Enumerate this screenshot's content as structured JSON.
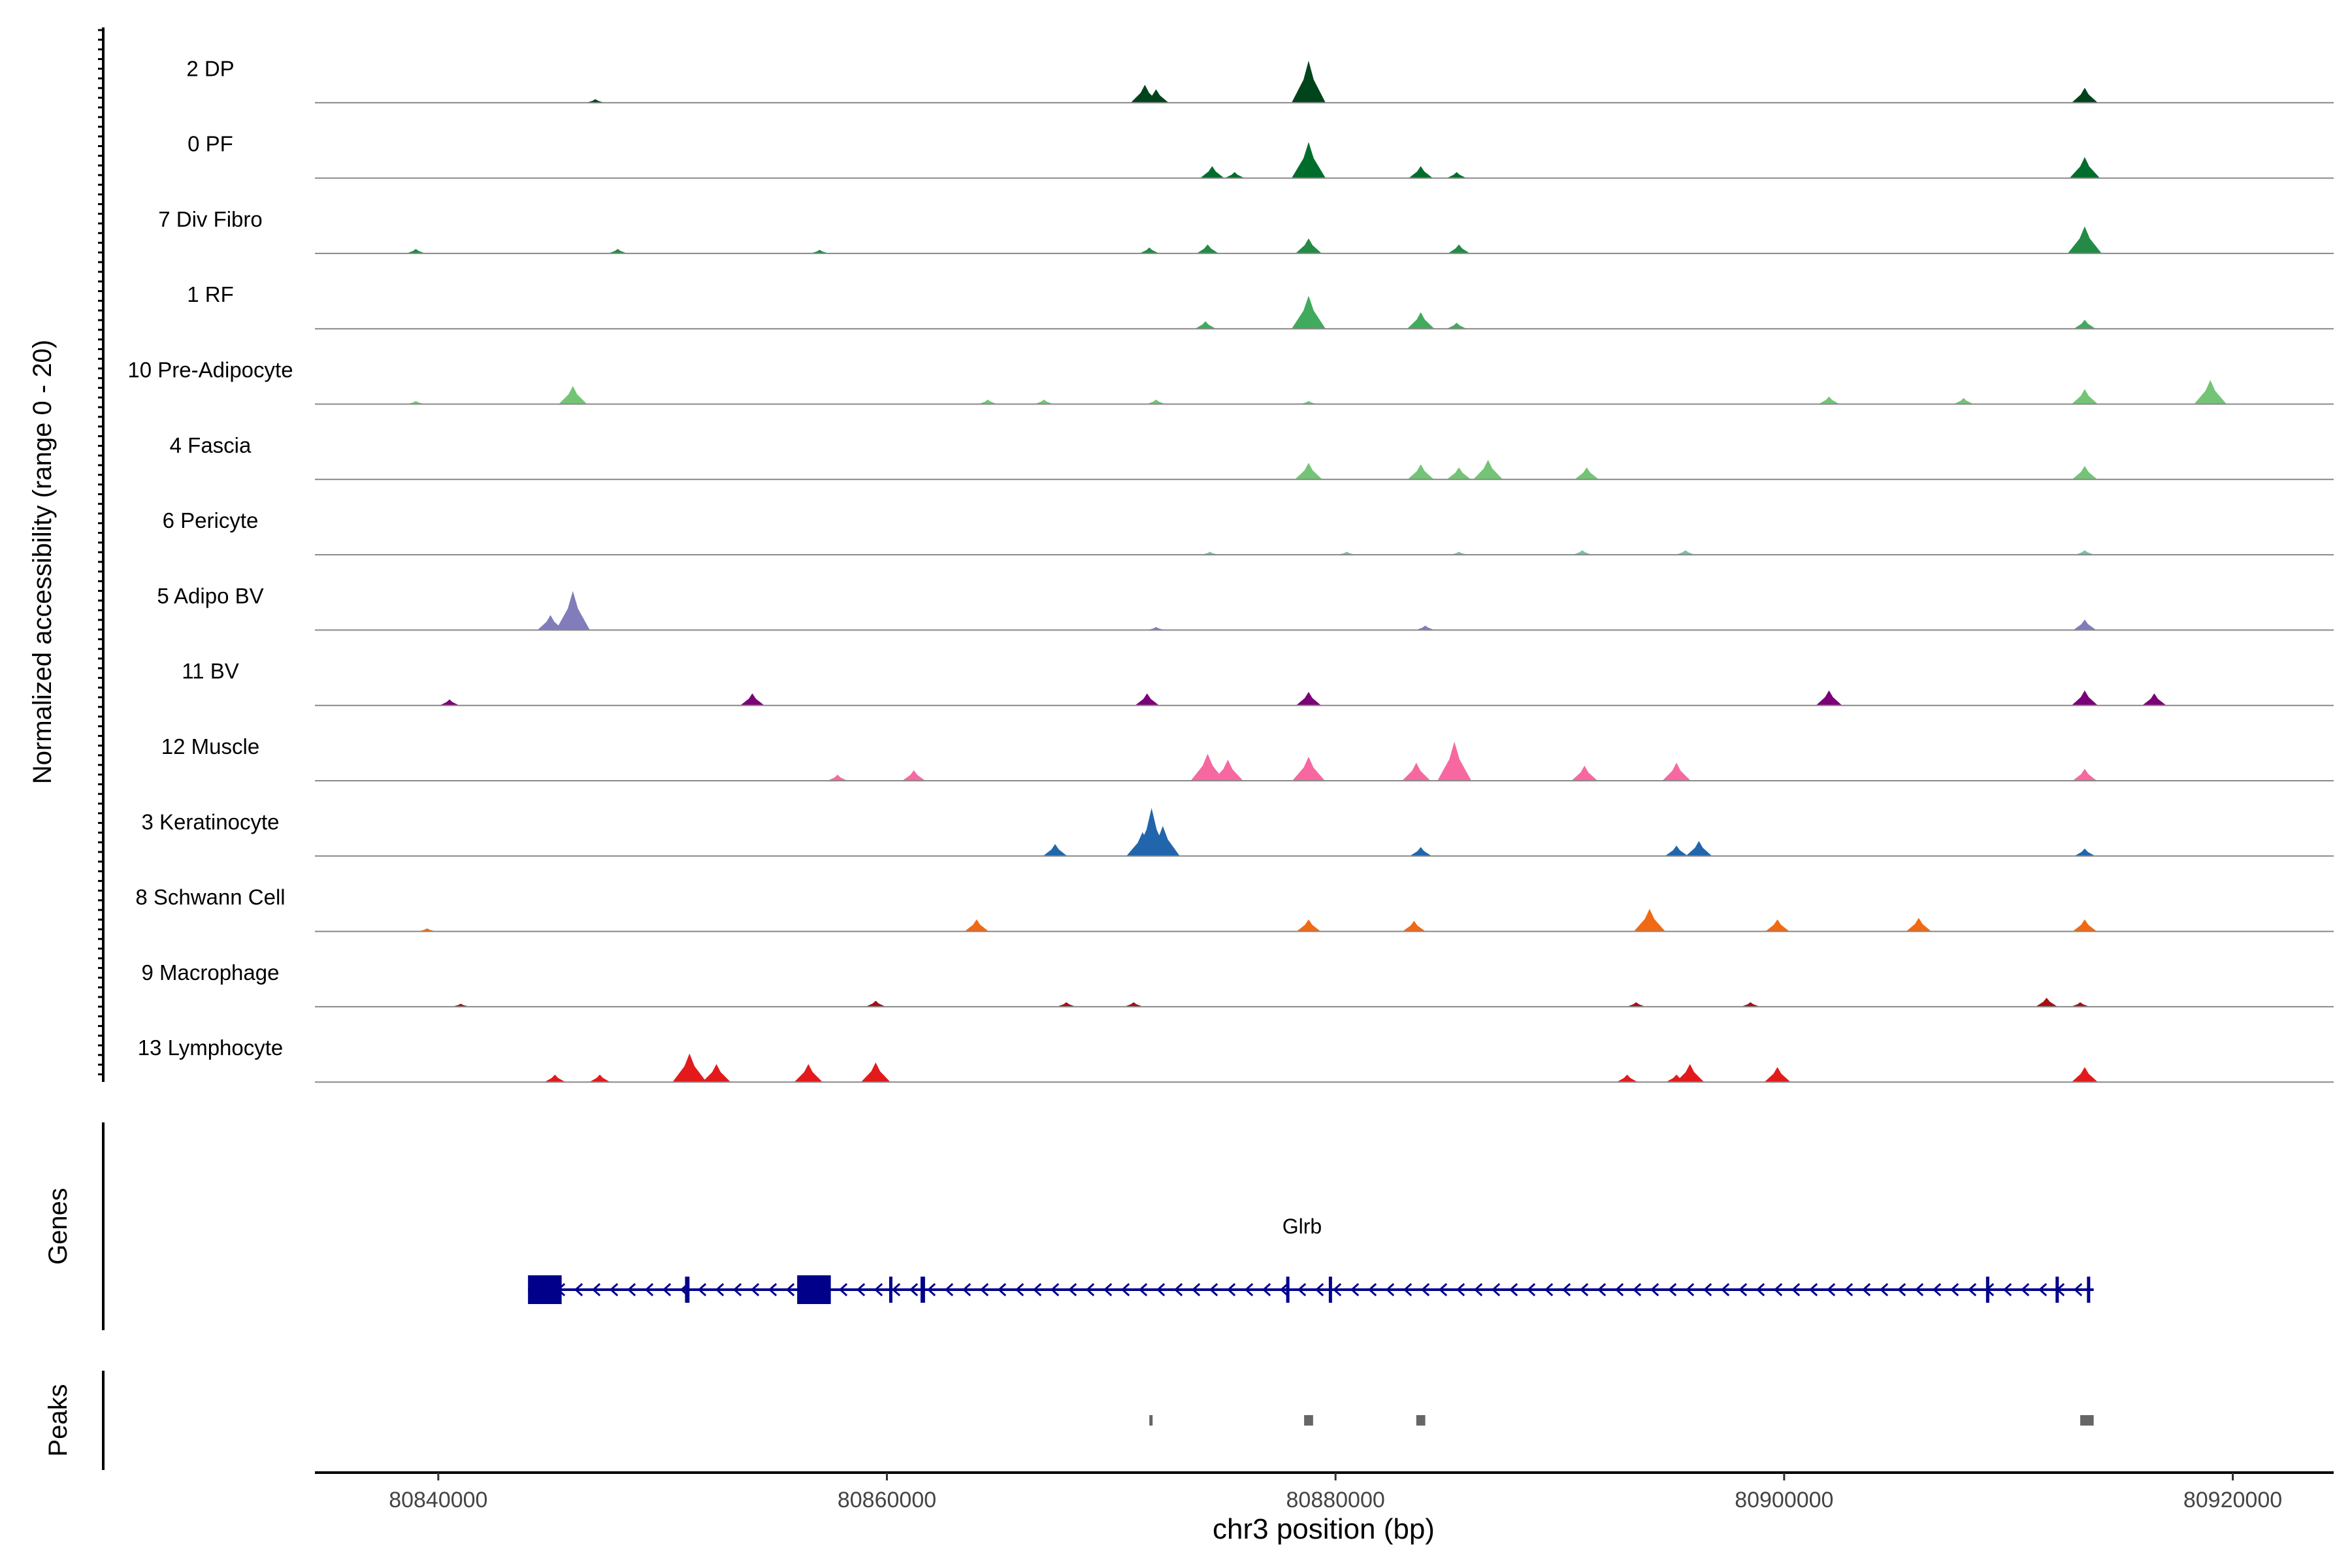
{
  "chart_data": {
    "type": "coverage-track",
    "ylabel": "Normalized accessibility\n(range 0 - 20)",
    "ylim": [
      0,
      20
    ],
    "xlabel": "chr3 position (bp)",
    "xlim": [
      80834500,
      80924500
    ],
    "xticks": [
      80840000,
      80860000,
      80880000,
      80900000,
      80920000
    ],
    "xtick_labels": [
      "80840000",
      "80860000",
      "80880000",
      "80900000",
      "80920000"
    ],
    "genes_label": "Genes",
    "peaks_label": "Peaks",
    "series": [
      {
        "name": "2 DP",
        "color": "#00441b",
        "peaks": [
          [
            80847000,
            1.2
          ],
          [
            80871500,
            6
          ],
          [
            80872000,
            4.5
          ],
          [
            80878800,
            14
          ],
          [
            80913400,
            5
          ]
        ]
      },
      {
        "name": "0 PF",
        "color": "#006d2c",
        "peaks": [
          [
            80874500,
            4
          ],
          [
            80875500,
            2
          ],
          [
            80878800,
            12
          ],
          [
            80883800,
            4
          ],
          [
            80885400,
            2
          ],
          [
            80913400,
            7
          ]
        ]
      },
      {
        "name": "7 Div Fibro",
        "color": "#238b45",
        "peaks": [
          [
            80839000,
            1.5
          ],
          [
            80848000,
            1.5
          ],
          [
            80857000,
            1.2
          ],
          [
            80871700,
            2
          ],
          [
            80874300,
            3
          ],
          [
            80878800,
            5
          ],
          [
            80885500,
            3
          ],
          [
            80913400,
            9
          ]
        ]
      },
      {
        "name": "1 RF",
        "color": "#41ab5d",
        "peaks": [
          [
            80874200,
            2.5
          ],
          [
            80878800,
            11
          ],
          [
            80883800,
            5.5
          ],
          [
            80885400,
            2
          ],
          [
            80913400,
            3
          ]
        ]
      },
      {
        "name": "10 Pre-Adipocyte",
        "color": "#74c476",
        "peaks": [
          [
            80839000,
            1
          ],
          [
            80846000,
            6
          ],
          [
            80864500,
            1.5
          ],
          [
            80867000,
            1.5
          ],
          [
            80872000,
            1.5
          ],
          [
            80878800,
            1
          ],
          [
            80902000,
            2.5
          ],
          [
            80908000,
            2
          ],
          [
            80913400,
            5
          ],
          [
            80919000,
            8
          ]
        ]
      },
      {
        "name": "4 Fascia",
        "color": "#74c476",
        "peaks": [
          [
            80878800,
            5.5
          ],
          [
            80883800,
            5
          ],
          [
            80885500,
            4
          ],
          [
            80886800,
            6.5
          ],
          [
            80891200,
            4
          ],
          [
            80913400,
            4.5
          ]
        ]
      },
      {
        "name": "6 Pericyte",
        "color": "#74c4a6",
        "peaks": [
          [
            80874400,
            1
          ],
          [
            80880500,
            1
          ],
          [
            80885500,
            1
          ],
          [
            80891000,
            1.5
          ],
          [
            80895600,
            1.5
          ],
          [
            80913400,
            1.5
          ]
        ]
      },
      {
        "name": "5 Adipo BV",
        "color": "#807dba",
        "peaks": [
          [
            80845000,
            5
          ],
          [
            80846000,
            13
          ],
          [
            80872000,
            1
          ],
          [
            80884000,
            1.5
          ],
          [
            80913400,
            3.5
          ]
        ]
      },
      {
        "name": "11 BV",
        "color": "#7a0177",
        "peaks": [
          [
            80840500,
            2
          ],
          [
            80854000,
            4
          ],
          [
            80871600,
            4
          ],
          [
            80878800,
            4.5
          ],
          [
            80902000,
            5
          ],
          [
            80913400,
            5
          ],
          [
            80916500,
            4
          ]
        ]
      },
      {
        "name": "12 Muscle",
        "color": "#f768a1",
        "peaks": [
          [
            80857800,
            2
          ],
          [
            80861200,
            3.5
          ],
          [
            80874300,
            9
          ],
          [
            80875200,
            7
          ],
          [
            80878800,
            8
          ],
          [
            80883600,
            6
          ],
          [
            80885300,
            13
          ],
          [
            80891100,
            5
          ],
          [
            80895200,
            6
          ],
          [
            80913400,
            4
          ]
        ]
      },
      {
        "name": "3 Keratinocyte",
        "color": "#2166ac",
        "peaks": [
          [
            80867500,
            4
          ],
          [
            80871400,
            8
          ],
          [
            80871800,
            16
          ],
          [
            80872300,
            10
          ],
          [
            80883800,
            3
          ],
          [
            80895200,
            3.5
          ],
          [
            80896200,
            5
          ],
          [
            80913400,
            2.5
          ]
        ]
      },
      {
        "name": "8 Schwann Cell",
        "color": "#f16913",
        "peaks": [
          [
            80839500,
            1
          ],
          [
            80864000,
            4
          ],
          [
            80878800,
            4
          ],
          [
            80883500,
            3.5
          ],
          [
            80894000,
            7.5
          ],
          [
            80899700,
            4
          ],
          [
            80906000,
            4.5
          ],
          [
            80913400,
            4
          ]
        ]
      },
      {
        "name": "9 Macrophage",
        "color": "#a50f15",
        "peaks": [
          [
            80841000,
            1
          ],
          [
            80859500,
            2
          ],
          [
            80868000,
            1.5
          ],
          [
            80871000,
            1.5
          ],
          [
            80893400,
            1.5
          ],
          [
            80898500,
            1.5
          ],
          [
            80911700,
            3
          ],
          [
            80913200,
            1.5
          ]
        ]
      },
      {
        "name": "13 Lymphocyte",
        "color": "#e31a1c",
        "peaks": [
          [
            80845200,
            2.5
          ],
          [
            80847200,
            2.5
          ],
          [
            80851200,
            9.5
          ],
          [
            80852400,
            6
          ],
          [
            80856500,
            6
          ],
          [
            80859500,
            6.5
          ],
          [
            80893000,
            2.5
          ],
          [
            80895200,
            2.5
          ],
          [
            80895800,
            6
          ],
          [
            80899700,
            5
          ],
          [
            80913400,
            5
          ]
        ]
      }
    ],
    "gene": {
      "name": "Glrb",
      "strand": "-",
      "start": 80844000,
      "end": 80913800,
      "exons": [
        [
          80844000,
          80845500
        ],
        [
          80851000,
          80851200
        ],
        [
          80856000,
          80857500
        ],
        [
          80860100,
          80860200
        ],
        [
          80861500,
          80861700
        ],
        [
          80877800,
          80877900
        ],
        [
          80879700,
          80879800
        ],
        [
          80909000,
          80909100
        ],
        [
          80912100,
          80912200
        ],
        [
          80913500,
          80913600
        ]
      ]
    },
    "peaks": [
      [
        80871700,
        80871800
      ],
      [
        80878600,
        80879000
      ],
      [
        80883600,
        80884000
      ],
      [
        80913200,
        80913800
      ]
    ]
  }
}
